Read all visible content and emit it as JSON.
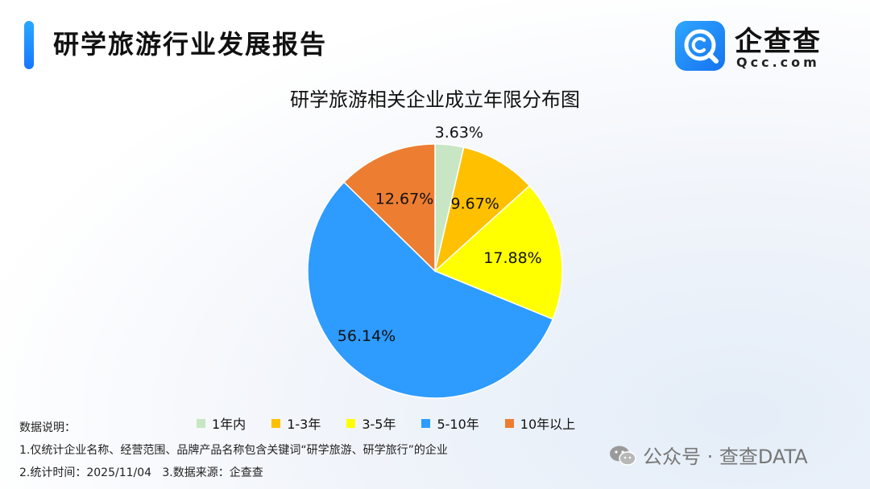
{
  "header": {
    "title": "研学旅游行业发展报告"
  },
  "logo": {
    "name_cn": "企查查",
    "name_en": "Qcc.com"
  },
  "colors": {
    "accent": "#1677ff"
  },
  "chart_data": {
    "type": "pie",
    "title": "研学旅游相关企业成立年限分布图",
    "start_angle": "12 o'clock",
    "direction": "clockwise",
    "legend_position": "bottom",
    "slices": [
      {
        "label": "1年内",
        "value": 3.63,
        "display": "3.63%",
        "color": "#c8e6c4"
      },
      {
        "label": "1-3年",
        "value": 9.67,
        "display": "9.67%",
        "color": "#ffc000"
      },
      {
        "label": "3-5年",
        "value": 17.88,
        "display": "17.88%",
        "color": "#ffff00"
      },
      {
        "label": "5-10年",
        "value": 56.14,
        "display": "56.14%",
        "color": "#2e9bff"
      },
      {
        "label": "10年以上",
        "value": 12.67,
        "display": "12.67%",
        "color": "#ed7d31"
      }
    ]
  },
  "notes": {
    "heading": "数据说明：",
    "line1": "1.仅统计企业名称、经营范围、品牌产品名称包含关键词“研学旅游、研学旅行”的企业",
    "line2": "2.统计时间：2025/11/04   3.数据来源：企查查"
  },
  "watermark": {
    "text": "公众号 · 查查DATA",
    "icon": "wechat-icon"
  }
}
